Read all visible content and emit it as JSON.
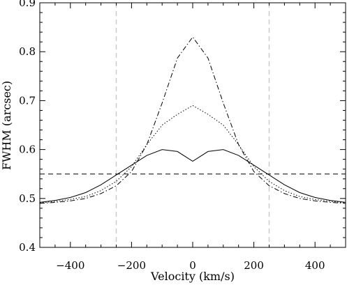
{
  "chart_data": {
    "type": "line",
    "title": "",
    "xlabel": "Velocity (km/s)",
    "ylabel": "FWHM (arcsec)",
    "xlim": [
      -500,
      500
    ],
    "ylim": [
      0.4,
      0.9
    ],
    "xticks": [
      -400,
      -200,
      0,
      200,
      400
    ],
    "xtick_labels": [
      "−400",
      "−200",
      "0",
      "200",
      "400"
    ],
    "yticks": [
      0.4,
      0.5,
      0.6,
      0.7,
      0.8,
      0.9
    ],
    "ytick_labels": [
      "0.4",
      "0.5",
      "0.6",
      "0.7",
      "0.8",
      "0.9"
    ],
    "grid": false,
    "legend": "none",
    "series": [
      {
        "style": "solid",
        "color": "#000000",
        "x": [
          -500,
          -450,
          -400,
          -350,
          -300,
          -250,
          -200,
          -150,
          -100,
          -50,
          0,
          50,
          100,
          150,
          200,
          250,
          300,
          350,
          400,
          450,
          500
        ],
        "y": [
          0.492,
          0.496,
          0.502,
          0.512,
          0.528,
          0.548,
          0.568,
          0.588,
          0.6,
          0.596,
          0.576,
          0.596,
          0.6,
          0.588,
          0.568,
          0.548,
          0.528,
          0.512,
          0.502,
          0.496,
          0.492
        ]
      },
      {
        "style": "dotted",
        "color": "#000000",
        "x": [
          -500,
          -450,
          -400,
          -350,
          -300,
          -250,
          -200,
          -150,
          -100,
          -50,
          0,
          50,
          100,
          150,
          200,
          250,
          300,
          350,
          400,
          450,
          500
        ],
        "y": [
          0.491,
          0.494,
          0.498,
          0.504,
          0.516,
          0.535,
          0.565,
          0.61,
          0.65,
          0.672,
          0.69,
          0.672,
          0.65,
          0.61,
          0.565,
          0.535,
          0.516,
          0.504,
          0.498,
          0.494,
          0.491
        ]
      },
      {
        "style": "dash-dot",
        "color": "#000000",
        "x": [
          -500,
          -450,
          -400,
          -350,
          -300,
          -250,
          -200,
          -150,
          -100,
          -50,
          0,
          50,
          100,
          150,
          200,
          250,
          300,
          350,
          400,
          450,
          500
        ],
        "y": [
          0.49,
          0.492,
          0.495,
          0.5,
          0.51,
          0.526,
          0.555,
          0.61,
          0.695,
          0.787,
          0.83,
          0.787,
          0.695,
          0.61,
          0.555,
          0.526,
          0.51,
          0.5,
          0.495,
          0.492,
          0.49
        ]
      }
    ],
    "hlines": [
      {
        "y": 0.55,
        "style": "dashed",
        "color": "#000000"
      }
    ],
    "vlines": [
      {
        "x": -250,
        "style": "dashed",
        "color": "#c8c8c8"
      },
      {
        "x": 250,
        "style": "dashed",
        "color": "#c8c8c8"
      }
    ]
  }
}
